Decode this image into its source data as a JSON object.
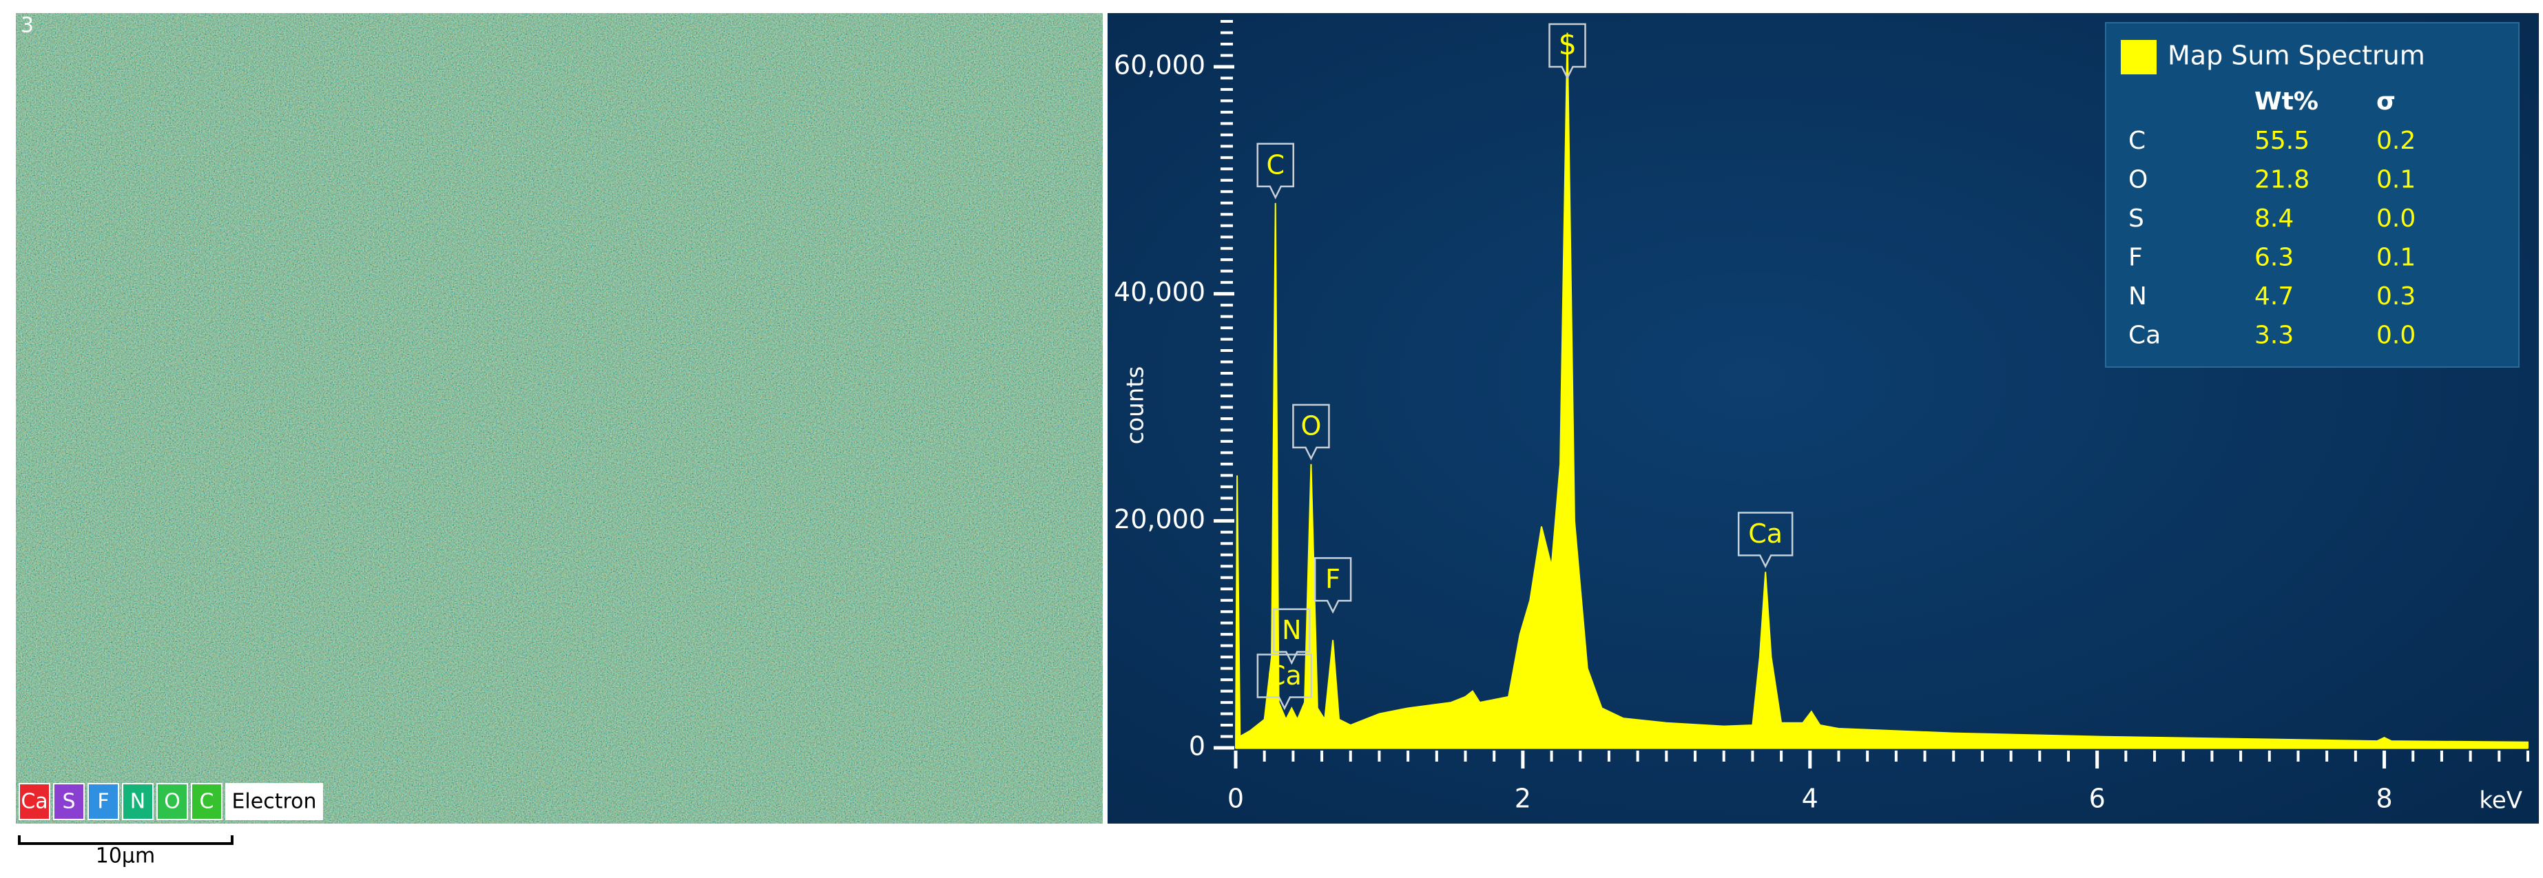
{
  "map": {
    "number": "3",
    "layers": [
      {
        "name": "Ca",
        "color": "#e8262b"
      },
      {
        "name": "S",
        "color": "#8a3fd1"
      },
      {
        "name": "F",
        "color": "#2f8fe0"
      },
      {
        "name": "N",
        "color": "#14b37a"
      },
      {
        "name": "O",
        "color": "#2ec24a"
      },
      {
        "name": "C",
        "color": "#35c22e"
      },
      {
        "name": "Electron",
        "color": "#ffffff"
      }
    ],
    "scale_bar": "10µm"
  },
  "chart_data": {
    "type": "area",
    "xlabel": "keV",
    "ylabel": "counts",
    "xlim": [
      0,
      9
    ],
    "ylim": [
      0,
      64000
    ],
    "xticks": [
      0,
      2,
      4,
      6,
      8
    ],
    "yticks": [
      0,
      {
        "value": 20000,
        "label": "20,000"
      },
      {
        "value": 40000,
        "label": "40,000"
      },
      {
        "value": 60000,
        "label": "60,000"
      }
    ],
    "x": [
      0,
      0.01,
      0.03,
      0.1,
      0.2,
      0.25,
      0.277,
      0.3,
      0.35,
      0.39,
      0.43,
      0.48,
      0.525,
      0.57,
      0.62,
      0.677,
      0.72,
      0.8,
      1.0,
      1.2,
      1.5,
      1.6,
      1.65,
      1.7,
      1.9,
      1.98,
      2.05,
      2.13,
      2.2,
      2.26,
      2.31,
      2.36,
      2.45,
      2.55,
      2.7,
      3.0,
      3.4,
      3.6,
      3.65,
      3.69,
      3.73,
      3.8,
      3.95,
      4.01,
      4.07,
      4.2,
      5,
      6,
      7,
      7.95,
      8.0,
      8.05,
      9
    ],
    "series": [
      {
        "name": "Map Sum Spectrum",
        "color": "#ffff00",
        "values": [
          0,
          24000,
          1000,
          1500,
          2500,
          8000,
          48000,
          4000,
          2500,
          3500,
          2500,
          4000,
          25000,
          3500,
          2500,
          9500,
          2500,
          2000,
          3000,
          3500,
          4000,
          4500,
          5000,
          4000,
          4500,
          10000,
          13000,
          19500,
          16000,
          25000,
          63000,
          20000,
          7000,
          3500,
          2600,
          2200,
          1900,
          2000,
          8000,
          15500,
          8000,
          2200,
          2200,
          3200,
          2000,
          1700,
          1300,
          1000,
          800,
          600,
          900,
          600,
          500
        ]
      }
    ],
    "annotations": [
      {
        "text": "C",
        "x": 0.277,
        "y": 48000
      },
      {
        "text": "O",
        "x": 0.525,
        "y": 25000
      },
      {
        "text": "S",
        "x": 2.31,
        "y": 63000
      },
      {
        "text": "F",
        "x": 0.677,
        "y": 11500
      },
      {
        "text": "N",
        "x": 0.39,
        "y": 7000
      },
      {
        "text": "Ca",
        "x": 0.34,
        "y": 3000
      },
      {
        "text": "Ca",
        "x": 3.69,
        "y": 15500
      }
    ],
    "table": {
      "columns": [
        "Wt%",
        "σ"
      ],
      "rows": [
        [
          "C",
          "55.5",
          "0.2"
        ],
        [
          "O",
          "21.8",
          "0.1"
        ],
        [
          "S",
          "8.4",
          "0.0"
        ],
        [
          "F",
          "6.3",
          "0.1"
        ],
        [
          "N",
          "4.7",
          "0.3"
        ],
        [
          "Ca",
          "3.3",
          "0.0"
        ]
      ]
    }
  }
}
